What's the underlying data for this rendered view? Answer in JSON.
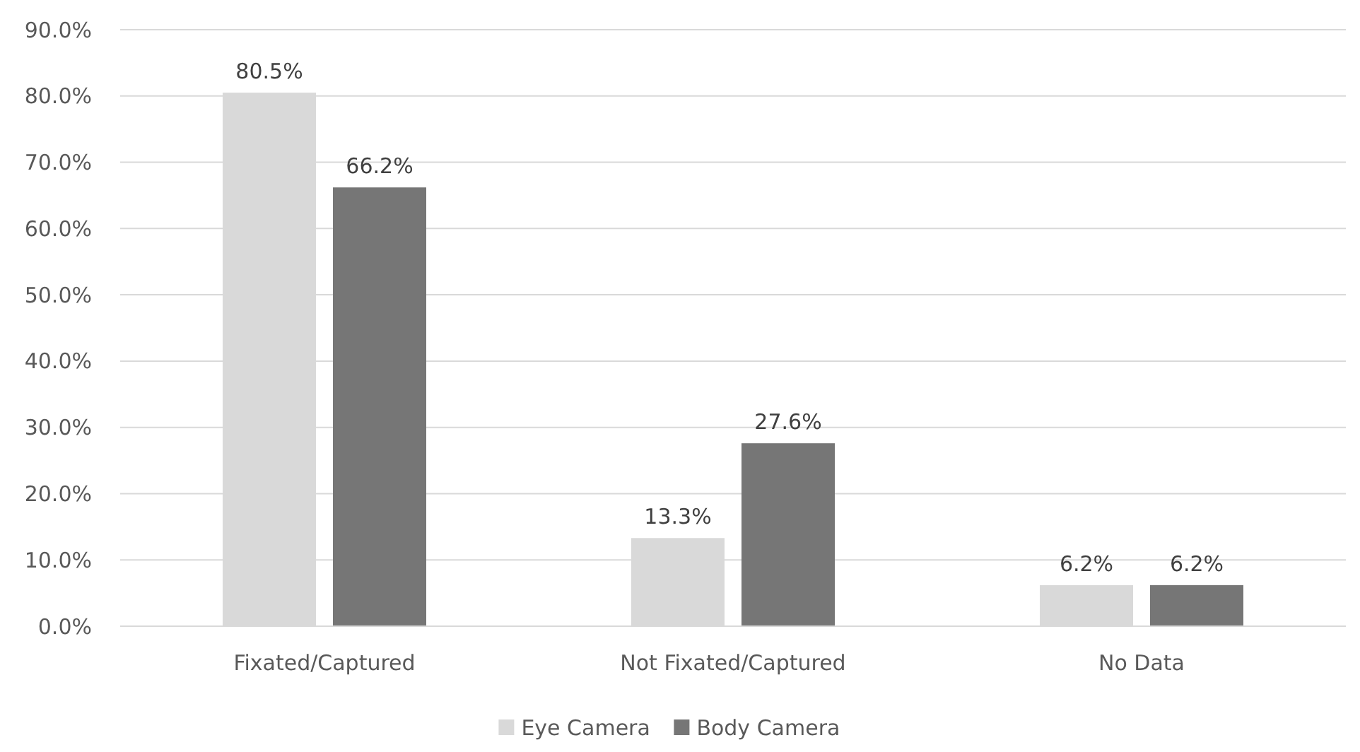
{
  "chart_data": {
    "type": "bar",
    "categories": [
      "Fixated/Captured",
      "Not Fixated/Captured",
      "No Data"
    ],
    "series": [
      {
        "name": "Eye Camera",
        "color": "#d9d9d9",
        "values": [
          80.5,
          13.3,
          6.2
        ],
        "value_labels": [
          "80.5%",
          "13.3%",
          "6.2%"
        ]
      },
      {
        "name": "Body Camera",
        "color": "#767676",
        "values": [
          66.2,
          27.6,
          6.2
        ],
        "value_labels": [
          "66.2%",
          "27.6%",
          "6.2%"
        ]
      }
    ],
    "ylim": [
      0,
      90
    ],
    "yticks": [
      {
        "value": 0,
        "label": "0.0%"
      },
      {
        "value": 10,
        "label": "10.0%"
      },
      {
        "value": 20,
        "label": "20.0%"
      },
      {
        "value": 30,
        "label": "30.0%"
      },
      {
        "value": 40,
        "label": "40.0%"
      },
      {
        "value": 50,
        "label": "50.0%"
      },
      {
        "value": 60,
        "label": "60.0%"
      },
      {
        "value": 70,
        "label": "70.0%"
      },
      {
        "value": 80,
        "label": "80.0%"
      },
      {
        "value": 90,
        "label": "90.0%"
      }
    ],
    "grid": "y",
    "legend": "bottom"
  }
}
